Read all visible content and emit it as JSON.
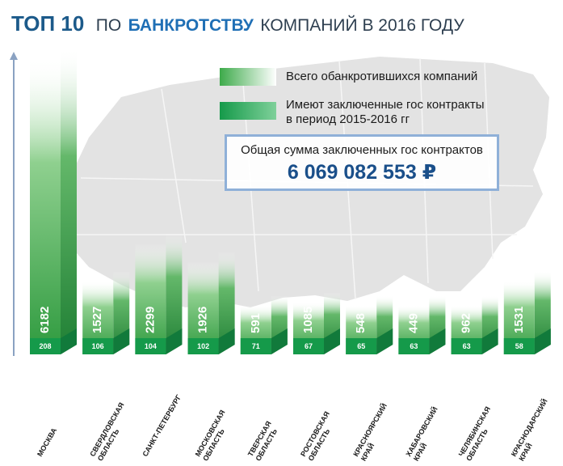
{
  "title": {
    "main": "ТОП 10",
    "rest": "ПО",
    "accent": "БАНКРОТСТВУ",
    "rest2": "КОМПАНИЙ В 2016 ГОДУ"
  },
  "legend": {
    "total_label": "Всего обанкротившихся компаний",
    "contracts_label_line1": "Имеют заключенные гос контракты",
    "contracts_label_line2": "в период 2015-2016 гг"
  },
  "total_box": {
    "label": "Общая сумма заключенных гос контрактов",
    "value": "6 069 082 553 ₽"
  },
  "colors": {
    "bar_total_top": "#5cb85c",
    "bar_total_bottom": "#2e9a3e",
    "bar_contracts": "#159a4a",
    "bar_side": "#117a3b",
    "axis": "#8aa2c2",
    "map": "#e3e3e3"
  },
  "chart_data": {
    "type": "bar",
    "categories": [
      [
        "МОСКВА"
      ],
      [
        "СВЕРДЛОВСКАЯ",
        "ОБЛАСТЬ"
      ],
      [
        "САНКТ-ПЕТЕРБУРГ"
      ],
      [
        "МОСКОВСКАЯ",
        "ОБЛАСТЬ"
      ],
      [
        "ТВЕРСКАЯ",
        "ОБЛАСТЬ"
      ],
      [
        "РОСТОВСКАЯ",
        "ОБЛАСТЬ"
      ],
      [
        "КРАСНОЯРСКИЙ",
        "КРАЙ"
      ],
      [
        "ХАБАРОВСКИЙ",
        "КРАЙ"
      ],
      [
        "ЧЕЛЯБИНСКАЯ",
        "ОБЛАСТЬ"
      ],
      [
        "КРАСНОДАРСКИЙ",
        "КРАЙ"
      ]
    ],
    "series": [
      {
        "name": "Всего обанкротившихся компаний",
        "values": [
          6182,
          1527,
          2299,
          1926,
          591,
          1085,
          548,
          449,
          962,
          1531
        ]
      },
      {
        "name": "Имеют заключенные гос контракты в период 2015-2016 гг",
        "values": [
          208,
          106,
          104,
          102,
          71,
          67,
          65,
          63,
          63,
          58
        ]
      }
    ],
    "sorted_by": "contracts, descending",
    "grid": false
  }
}
